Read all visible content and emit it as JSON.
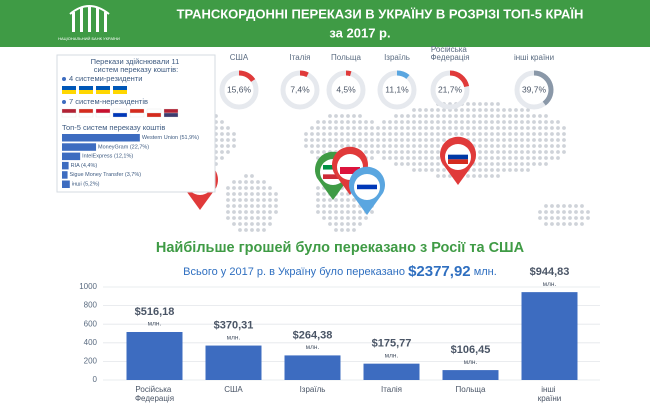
{
  "header": {
    "logo_text": "НАЦІОНАЛЬНИЙ БАНК УКРАЇНИ",
    "title": "ТРАНСКОРДОННІ ПЕРЕКАЗИ  В УКРАЇНУ В РОЗРІЗІ ТОП-5 КРАЇН",
    "subtitle": "за 2017 р."
  },
  "systems": {
    "intro": "Перекази здійснювали 11 систем переказу коштів:",
    "residents": "4 системи-резиденти",
    "nonresidents": "7 систем-нерезидентів"
  },
  "summary": {
    "headline": "Найбільше грошей було переказано з Росії та США",
    "total_text": "Всього у 2017 р. в Україну було переказано",
    "total_value": "$2377,92",
    "total_unit": "млн."
  },
  "chart_data": [
    {
      "type": "donut",
      "categories": [
        "США",
        "Італія",
        "Польща",
        "Ізраїль",
        "Російська Федерація",
        "інші країни"
      ],
      "values": [
        15.6,
        7.4,
        4.5,
        11.1,
        21.7,
        39.7
      ],
      "value_labels": [
        "15,6%",
        "7,4%",
        "4,5%",
        "11,1%",
        "21,7%",
        "39,7%"
      ],
      "colors": [
        "#e03a3a",
        "#e03a3a",
        "#e03a3a",
        "#5aa6e0",
        "#e03a3a",
        "#8a98a8"
      ]
    },
    {
      "type": "hbar",
      "title": "Топ-5 систем переказу коштів",
      "categories": [
        "Western Union",
        "MoneyGram",
        "IntelExpress",
        "RIA",
        "Sigue Money Transfer",
        "інші"
      ],
      "values": [
        51.9,
        22.7,
        12.1,
        4.4,
        3.7,
        5.2
      ],
      "value_labels": [
        "(51,9%)",
        "(22,7%)",
        "(12,1%)",
        "(4,4%)",
        "(3,7%)",
        "(5,2%)"
      ],
      "color": "#3d6cc0"
    },
    {
      "type": "bar",
      "categories": [
        "Російська Федерація",
        "США",
        "Ізраїль",
        "Італія",
        "Польща",
        "інші країни"
      ],
      "values": [
        516.18,
        370.31,
        264.38,
        175.77,
        106.45,
        944.83
      ],
      "value_labels": [
        "$516,18",
        "$370,31",
        "$264,38",
        "$175,77",
        "$106,45",
        "$944,83"
      ],
      "unit_label": "млн.",
      "color": "#3d6cc0",
      "ylim": [
        0,
        1000
      ],
      "yticks": [
        0,
        200,
        400,
        600,
        800,
        1000
      ],
      "grid": true
    }
  ]
}
